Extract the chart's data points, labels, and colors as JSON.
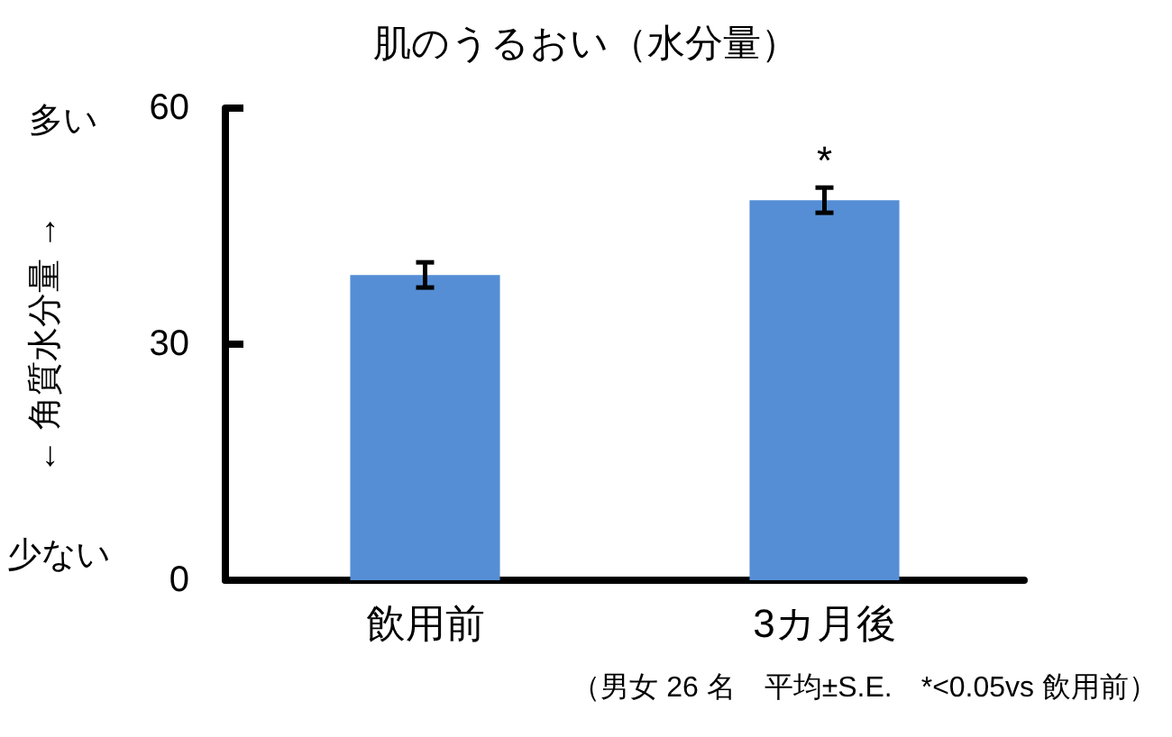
{
  "chart_data": {
    "type": "bar",
    "title": "肌のうるおい（水分量）",
    "ylabel": "← 角質水分量 →",
    "categories": [
      "飲用前",
      "3カ月後"
    ],
    "values": [
      38.8,
      48.3
    ],
    "errors": [
      1.6,
      1.6
    ],
    "color": "#558ed5",
    "ylim": [
      0,
      60
    ],
    "yticks": [
      0,
      30,
      60
    ],
    "annotations": [
      "多い",
      "少ない",
      "（男女 26 名　平均±S.E.　*<0.05vs 飲用前）",
      {
        "text": "*",
        "x": "3カ月後",
        "y": 48.3
      }
    ]
  }
}
